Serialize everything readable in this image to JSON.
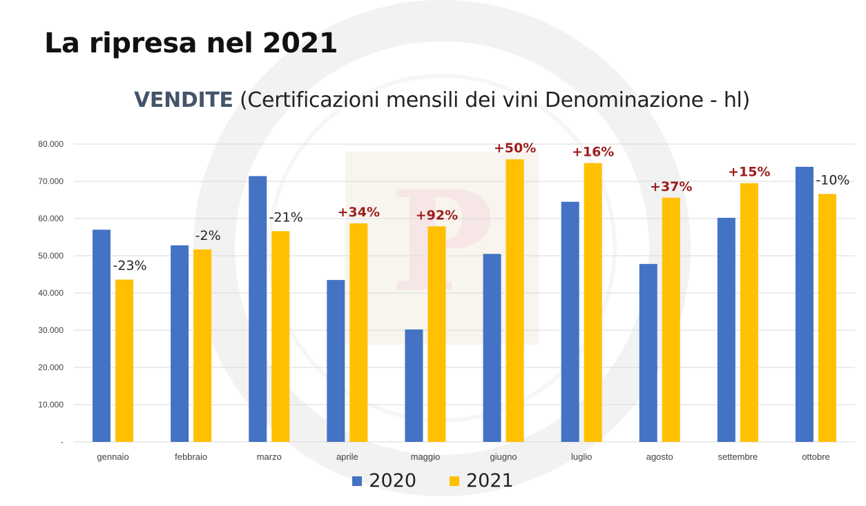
{
  "slide": {
    "title": "La ripresa nel 2021"
  },
  "chart_title": {
    "main": "VENDITE",
    "rest": " (Certificazioni mensili dei vini Denominazione - hl)"
  },
  "colors": {
    "series_2020": "#4472c4",
    "series_2021": "#ffc000",
    "pct_negative": "#222222",
    "pct_positive": "#9c1c1c",
    "grid": "#d9d9d9"
  },
  "legend": {
    "items": [
      {
        "label": "2020",
        "color": "#4472c4"
      },
      {
        "label": "2021",
        "color": "#ffc000"
      }
    ]
  },
  "chart_data": {
    "type": "bar",
    "title": "VENDITE (Certificazioni mensili dei vini Denominazione - hl)",
    "categories": [
      "gennaio",
      "febbraio",
      "marzo",
      "aprile",
      "maggio",
      "giugno",
      "luglio",
      "agosto",
      "settembre",
      "ottobre"
    ],
    "series": [
      {
        "name": "2020",
        "values": [
          57000,
          52800,
          71400,
          43500,
          30200,
          50500,
          64500,
          47800,
          60200,
          73900
        ]
      },
      {
        "name": "2021",
        "values": [
          43600,
          51700,
          56600,
          58700,
          57900,
          75900,
          74900,
          65600,
          69500,
          66600
        ]
      }
    ],
    "change_labels": [
      "-23%",
      "-2%",
      "-21%",
      "+34%",
      "+92%",
      "+50%",
      "+16%",
      "+37%",
      "+15%",
      "-10%"
    ],
    "ylim": [
      0,
      80000
    ],
    "yticks": [
      0,
      10000,
      20000,
      30000,
      40000,
      50000,
      60000,
      70000,
      80000
    ],
    "ytick_labels": [
      "-",
      "10.000",
      "20.000",
      "30.000",
      "40.000",
      "50.000",
      "60.000",
      "70.000",
      "80.000"
    ],
    "grid": true,
    "legend_position": "bottom"
  }
}
